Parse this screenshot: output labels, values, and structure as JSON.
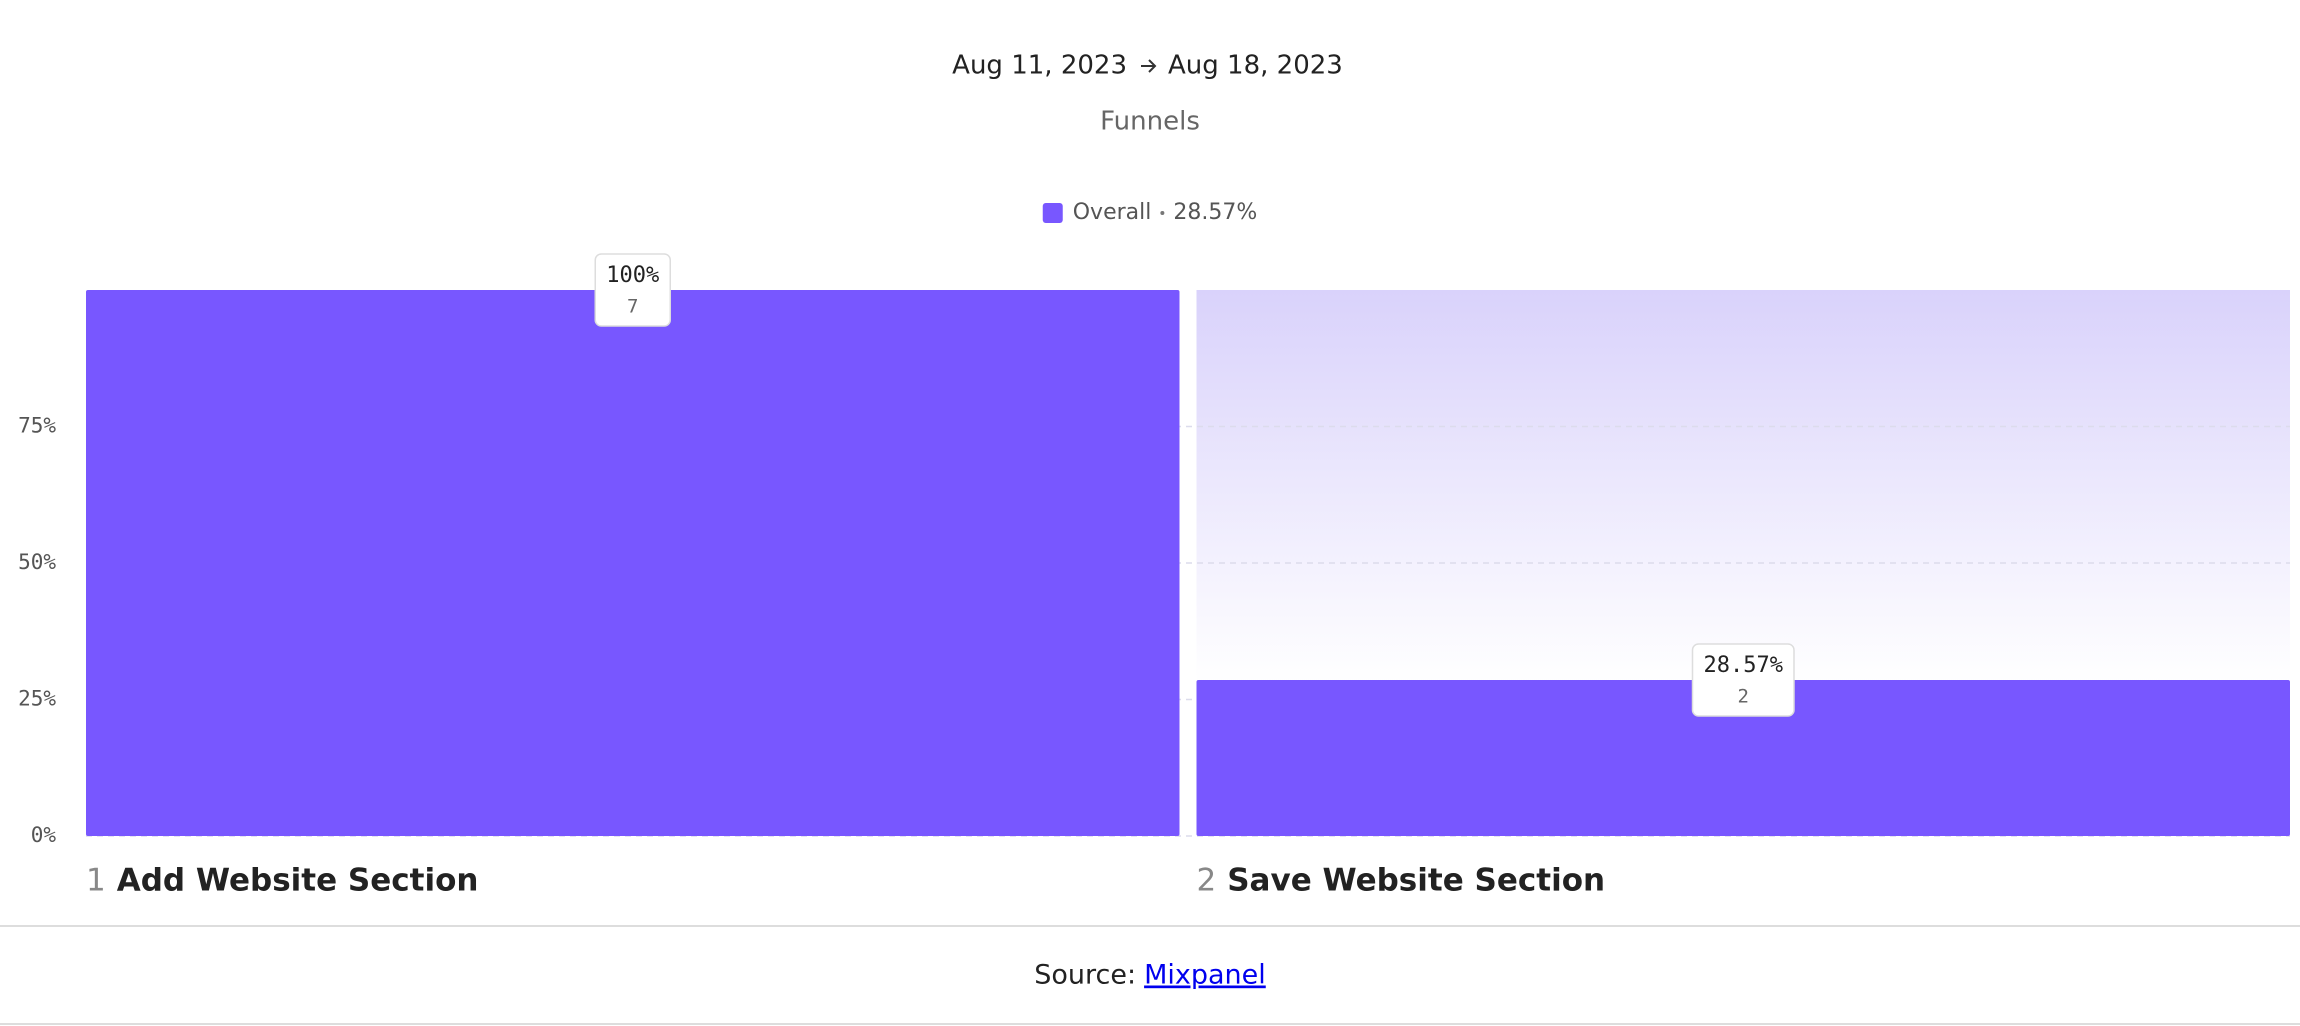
{
  "chart_data": {
    "type": "bar",
    "date_start": "Aug 11, 2023",
    "date_end": "Aug 18, 2023",
    "subtitle": "Funnels",
    "overall_conversion": "28.57%",
    "step_numbers": [
      1,
      2
    ],
    "categories": [
      "Add Website Section",
      "Save Website Section"
    ],
    "series": [
      {
        "name": "Overall",
        "color": "#7857ff",
        "values": [
          100,
          28.57
        ],
        "value_labels": [
          "100%",
          "28.57%"
        ],
        "counts": [
          7,
          2
        ]
      }
    ],
    "ylim": [
      0,
      100
    ],
    "yticks": [
      {
        "value": 0,
        "label": "0%"
      },
      {
        "value": 25,
        "label": "25%"
      },
      {
        "value": 50,
        "label": "50%"
      },
      {
        "value": 75,
        "label": "75%"
      }
    ],
    "grid": true
  },
  "footer": {
    "source_prefix": "Source:",
    "source_link": "Mixpanel"
  }
}
